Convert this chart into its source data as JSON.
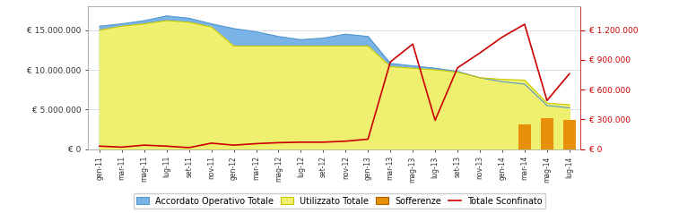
{
  "x_labels": [
    "gen-11",
    "mar-11",
    "mag-11",
    "lug-11",
    "set-11",
    "nov-11",
    "gen-12",
    "mar-12",
    "mag-12",
    "lug-12",
    "set-12",
    "nov-12",
    "gen-13",
    "mar-13",
    "mag-13",
    "lug-13",
    "set-13",
    "nov-13",
    "gen-14",
    "mar-14",
    "mag-14",
    "lug-14"
  ],
  "accordato": [
    15500000,
    15800000,
    16200000,
    16800000,
    16500000,
    15800000,
    15200000,
    14800000,
    14200000,
    13800000,
    14000000,
    14500000,
    14200000,
    10800000,
    10500000,
    10200000,
    9800000,
    9000000,
    8500000,
    8200000,
    5500000,
    5200000
  ],
  "utilizzato": [
    15000000,
    15500000,
    15800000,
    16200000,
    16000000,
    15400000,
    13000000,
    13000000,
    13000000,
    13000000,
    13000000,
    13000000,
    13000000,
    10400000,
    10200000,
    10000000,
    9700000,
    9000000,
    8800000,
    8700000,
    5800000,
    5600000
  ],
  "sofferenze_bar_indices": [
    19,
    20,
    21
  ],
  "sofferenze_bar_values": [
    250000,
    310000,
    290000
  ],
  "sconfinato": [
    30000,
    20000,
    40000,
    30000,
    15000,
    60000,
    40000,
    55000,
    65000,
    70000,
    70000,
    80000,
    100000,
    880000,
    1060000,
    290000,
    820000,
    970000,
    1130000,
    1260000,
    490000,
    760000
  ],
  "accordato_color": "#7ab3e8",
  "accordato_edge_color": "#5599cc",
  "utilizzato_color": "#f0f070",
  "utilizzato_edge_color": "#c8c800",
  "sofferenze_color": "#e8900a",
  "sconfinato_color": "#cc0000",
  "left_ylim": [
    0,
    18000000
  ],
  "right_ylim": [
    0,
    1440000
  ],
  "left_yticks": [
    0,
    5000000,
    10000000,
    15000000
  ],
  "left_yticklabels": [
    "€ 0",
    "€ 5.000.000",
    "€ 10.000.000",
    "€ 15.000.000"
  ],
  "right_yticks": [
    0,
    300000,
    600000,
    900000,
    1200000
  ],
  "right_yticklabels": [
    "€ 0",
    "€ 300.000",
    "€ 600.000",
    "€ 900.000",
    "€ 1.200.000"
  ],
  "legend_labels": [
    "Accordato Operativo Totale",
    "Utilizzato Totale",
    "Sofferenze",
    "Totale Sconfinato"
  ],
  "bg_color": "#ffffff",
  "grid_color": "#d0d8e8"
}
